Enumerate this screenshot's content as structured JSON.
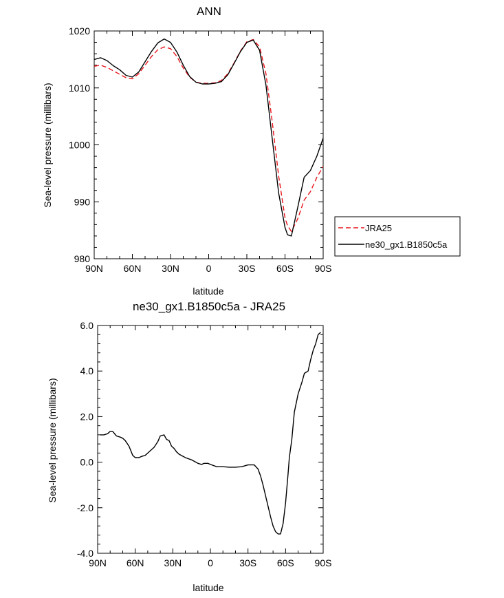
{
  "chart_data": [
    {
      "type": "line",
      "title": "ANN",
      "xlabel": "latitude",
      "ylabel": "Sea-level pressure (millibars)",
      "xlim": [
        -90,
        90
      ],
      "ylim": [
        980,
        1020
      ],
      "x_ticks": [
        -90,
        -60,
        -30,
        0,
        30,
        60,
        90
      ],
      "x_tick_labels": [
        "90N",
        "60N",
        "30N",
        "0",
        "30S",
        "60S",
        "90S"
      ],
      "y_ticks": [
        980,
        990,
        1000,
        1010,
        1020
      ],
      "y_tick_labels": [
        "980",
        "990",
        "1000",
        "1010",
        "1020"
      ],
      "legend_position": "right",
      "series": [
        {
          "name": "JRA25",
          "color": "#e8141a",
          "dash": true,
          "x": [
            -90,
            -85,
            -80,
            -75,
            -70,
            -65,
            -60,
            -55,
            -50,
            -45,
            -40,
            -35,
            -30,
            -25,
            -20,
            -15,
            -10,
            -5,
            0,
            5,
            10,
            15,
            20,
            25,
            30,
            35,
            40,
            45,
            50,
            55,
            60,
            62,
            65,
            70,
            75,
            80,
            85,
            90
          ],
          "values": [
            1013.8,
            1014.0,
            1013.6,
            1013.0,
            1012.4,
            1011.8,
            1011.6,
            1012.5,
            1014.0,
            1015.5,
            1016.7,
            1017.2,
            1016.9,
            1015.5,
            1013.5,
            1011.9,
            1011.0,
            1010.8,
            1010.8,
            1010.9,
            1011.3,
            1012.5,
            1014.4,
            1016.5,
            1018.1,
            1018.5,
            1017.2,
            1012.5,
            1004.0,
            994.5,
            987.2,
            985.8,
            984.8,
            987.0,
            990.3,
            991.8,
            994.3,
            996.2
          ]
        },
        {
          "name": "ne30_gx1.B1850c5a",
          "color": "#000000",
          "dash": false,
          "x": [
            -90,
            -85,
            -80,
            -75,
            -70,
            -65,
            -60,
            -55,
            -50,
            -45,
            -40,
            -35,
            -30,
            -25,
            -20,
            -15,
            -10,
            -5,
            0,
            5,
            10,
            15,
            20,
            25,
            30,
            35,
            40,
            45,
            50,
            55,
            60,
            62,
            65,
            70,
            75,
            80,
            85,
            90
          ],
          "values": [
            1015.0,
            1015.3,
            1014.8,
            1013.9,
            1013.2,
            1012.2,
            1011.9,
            1012.8,
            1014.6,
            1016.4,
            1017.9,
            1018.6,
            1018.0,
            1016.3,
            1014.0,
            1012.0,
            1011.0,
            1010.7,
            1010.7,
            1010.8,
            1011.1,
            1012.3,
            1014.3,
            1016.4,
            1018.0,
            1018.4,
            1016.6,
            1010.5,
            1001.0,
            991.5,
            985.5,
            984.2,
            984.0,
            989.0,
            994.3,
            995.5,
            998.0,
            1001.2
          ]
        }
      ]
    },
    {
      "type": "line",
      "title": "ne30_gx1.B1850c5a - JRA25",
      "xlabel": "latitude",
      "ylabel": "Sea-level pressure (millibars)",
      "xlim": [
        -90,
        90
      ],
      "ylim": [
        -4,
        6
      ],
      "x_ticks": [
        -90,
        -60,
        -30,
        0,
        30,
        60,
        90
      ],
      "x_tick_labels": [
        "90N",
        "60N",
        "30N",
        "0",
        "30S",
        "60S",
        "90S"
      ],
      "y_ticks": [
        -4,
        -2,
        0,
        2,
        4,
        6
      ],
      "y_tick_labels": [
        "-4.0",
        "-2.0",
        "0.0",
        "2.0",
        "4.0",
        "6.0"
      ],
      "series": [
        {
          "name": "ne30_gx1.B1850c5a - JRA25",
          "color": "#000000",
          "dash": false,
          "x": [
            -88,
            -85,
            -82,
            -80,
            -78,
            -75,
            -72,
            -70,
            -68,
            -65,
            -62,
            -60,
            -57,
            -55,
            -52,
            -50,
            -47,
            -45,
            -42,
            -40,
            -37,
            -35,
            -33,
            -31,
            -29,
            -27,
            -25,
            -20,
            -15,
            -10,
            -7,
            -5,
            -2,
            0,
            5,
            10,
            15,
            20,
            25,
            30,
            35,
            38,
            40,
            42,
            45,
            48,
            50,
            52,
            54,
            56,
            58,
            60,
            62,
            63,
            65,
            67,
            70,
            73,
            75,
            78,
            80,
            82,
            84,
            86,
            88
          ],
          "values": [
            1.2,
            1.2,
            1.25,
            1.35,
            1.35,
            1.15,
            1.1,
            1.05,
            0.95,
            0.7,
            0.3,
            0.2,
            0.2,
            0.25,
            0.3,
            0.4,
            0.55,
            0.65,
            0.9,
            1.15,
            1.2,
            1.0,
            0.95,
            0.7,
            0.6,
            0.45,
            0.35,
            0.2,
            0.1,
            -0.05,
            -0.1,
            -0.05,
            -0.05,
            -0.1,
            -0.2,
            -0.2,
            -0.22,
            -0.22,
            -0.2,
            -0.12,
            -0.12,
            -0.3,
            -0.6,
            -1.0,
            -1.7,
            -2.4,
            -2.8,
            -3.05,
            -3.15,
            -3.15,
            -2.7,
            -1.8,
            -0.5,
            0.2,
            1.0,
            2.2,
            3.0,
            3.5,
            3.9,
            4.0,
            4.5,
            4.9,
            5.2,
            5.6,
            5.7
          ]
        }
      ]
    }
  ]
}
